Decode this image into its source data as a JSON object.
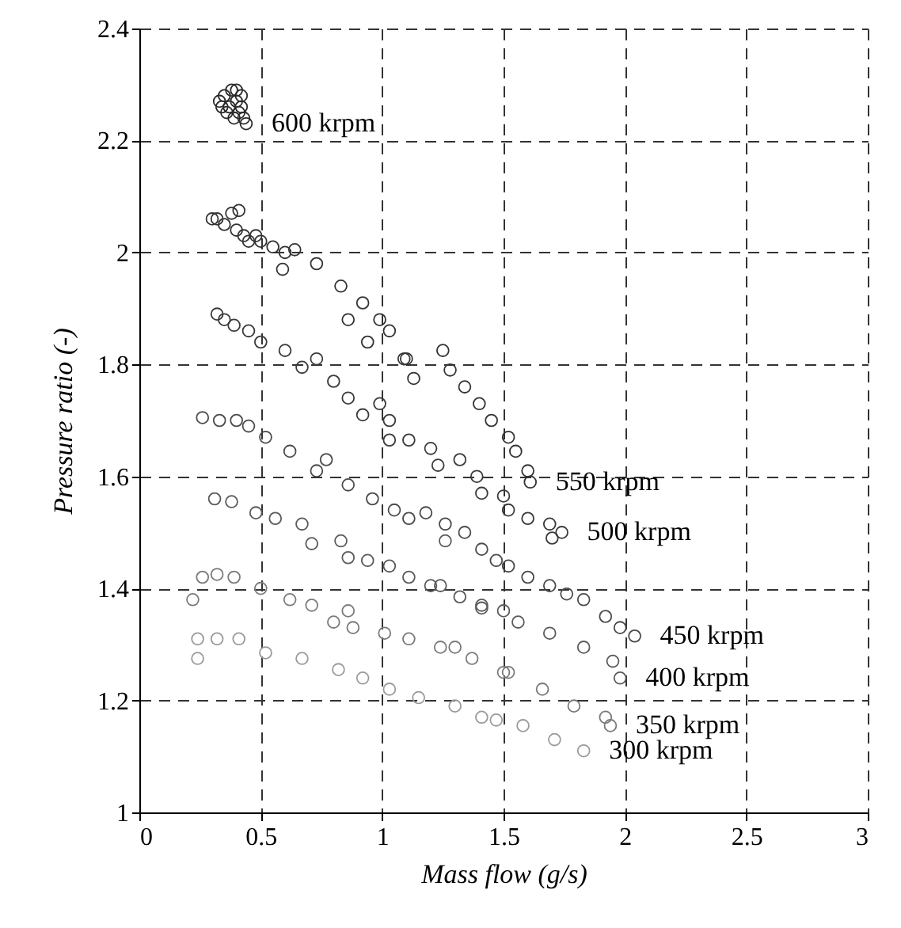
{
  "chart_data": {
    "type": "scatter",
    "xlabel": "Mass flow (g/s)",
    "ylabel": "Pressure ratio (-)",
    "xlim": [
      0,
      3
    ],
    "ylim": [
      1,
      2.4
    ],
    "xticks": [
      0,
      0.5,
      1,
      1.5,
      2,
      2.5,
      3
    ],
    "yticks": [
      1,
      1.2,
      1.4,
      1.6,
      1.8,
      2,
      2.2,
      2.4
    ],
    "grid": true,
    "marker": "circle",
    "series": [
      {
        "name": "600 krpm",
        "color": "#2a2a2a",
        "x": [
          0.33,
          0.35,
          0.37,
          0.38,
          0.36,
          0.4,
          0.41,
          0.39,
          0.42,
          0.43,
          0.44,
          0.34,
          0.4,
          0.42
        ],
        "values": [
          2.27,
          2.28,
          2.26,
          2.29,
          2.25,
          2.27,
          2.25,
          2.24,
          2.26,
          2.24,
          2.23,
          2.26,
          2.29,
          2.28
        ]
      },
      {
        "name": "550 krpm",
        "color": "#333333",
        "x": [
          0.3,
          0.32,
          0.35,
          0.38,
          0.41,
          0.4,
          0.43,
          0.45,
          0.48,
          0.5,
          0.55,
          0.59,
          0.6,
          0.64,
          0.73,
          0.83,
          0.86,
          0.92,
          0.94,
          0.99,
          1.03,
          1.09,
          1.1,
          1.13,
          1.25,
          1.28,
          1.34,
          1.4,
          1.45,
          1.52,
          1.55,
          1.6,
          1.61
        ],
        "values": [
          2.06,
          2.06,
          2.05,
          2.07,
          2.075,
          2.04,
          2.03,
          2.02,
          2.03,
          2.02,
          2.01,
          1.97,
          2.0,
          2.005,
          1.98,
          1.94,
          1.88,
          1.91,
          1.84,
          1.88,
          1.86,
          1.81,
          1.81,
          1.775,
          1.825,
          1.79,
          1.76,
          1.73,
          1.7,
          1.67,
          1.645,
          1.61,
          1.59
        ]
      },
      {
        "name": "500 krpm",
        "color": "#3a3a3a",
        "x": [
          0.32,
          0.35,
          0.39,
          0.45,
          0.5,
          0.6,
          0.67,
          0.73,
          0.8,
          0.86,
          0.92,
          0.99,
          1.03,
          1.03,
          1.11,
          1.2,
          1.23,
          1.32,
          1.39,
          1.41,
          1.5,
          1.52,
          1.6,
          1.69,
          1.7,
          1.74
        ],
        "values": [
          1.89,
          1.88,
          1.87,
          1.86,
          1.84,
          1.825,
          1.795,
          1.81,
          1.77,
          1.74,
          1.71,
          1.73,
          1.7,
          1.665,
          1.665,
          1.65,
          1.62,
          1.63,
          1.6,
          1.57,
          1.565,
          1.54,
          1.525,
          1.515,
          1.49,
          1.5
        ]
      },
      {
        "name": "450 krpm",
        "color": "#4a4a4a",
        "x": [
          0.26,
          0.33,
          0.4,
          0.45,
          0.52,
          0.62,
          0.73,
          0.77,
          0.86,
          0.96,
          1.05,
          1.11,
          1.18,
          1.26,
          1.34,
          1.41,
          1.47,
          1.52,
          1.6,
          1.69,
          1.76,
          1.83,
          1.92,
          1.98,
          2.04
        ],
        "values": [
          1.705,
          1.7,
          1.7,
          1.69,
          1.67,
          1.645,
          1.61,
          1.63,
          1.585,
          1.56,
          1.54,
          1.525,
          1.535,
          1.515,
          1.5,
          1.47,
          1.45,
          1.44,
          1.42,
          1.405,
          1.39,
          1.38,
          1.35,
          1.33,
          1.315
        ]
      },
      {
        "name": "400 krpm",
        "color": "#5a5a5a",
        "x": [
          0.31,
          0.38,
          0.48,
          0.56,
          0.67,
          0.71,
          0.83,
          0.86,
          0.94,
          1.03,
          1.11,
          1.2,
          1.24,
          1.26,
          1.32,
          1.41,
          1.41,
          1.5,
          1.56,
          1.69,
          1.83,
          1.95,
          1.98
        ],
        "values": [
          1.56,
          1.555,
          1.535,
          1.525,
          1.515,
          1.48,
          1.485,
          1.455,
          1.45,
          1.44,
          1.42,
          1.405,
          1.405,
          1.485,
          1.385,
          1.365,
          1.37,
          1.36,
          1.34,
          1.32,
          1.295,
          1.27,
          1.24
        ]
      },
      {
        "name": "350 krpm",
        "color": "#7a7a7a",
        "x": [
          0.22,
          0.26,
          0.32,
          0.39,
          0.5,
          0.62,
          0.71,
          0.8,
          0.86,
          0.88,
          1.01,
          1.11,
          1.24,
          1.3,
          1.37,
          1.5,
          1.52,
          1.66,
          1.79,
          1.92,
          1.94
        ],
        "values": [
          1.38,
          1.42,
          1.425,
          1.42,
          1.4,
          1.38,
          1.37,
          1.34,
          1.36,
          1.33,
          1.32,
          1.31,
          1.295,
          1.295,
          1.275,
          1.25,
          1.25,
          1.22,
          1.19,
          1.17,
          1.155
        ]
      },
      {
        "name": "300 krpm",
        "color": "#9a9a9a",
        "x": [
          0.24,
          0.24,
          0.32,
          0.41,
          0.52,
          0.67,
          0.82,
          0.92,
          1.03,
          1.15,
          1.3,
          1.41,
          1.47,
          1.58,
          1.71,
          1.83
        ],
        "values": [
          1.31,
          1.275,
          1.31,
          1.31,
          1.285,
          1.275,
          1.255,
          1.24,
          1.22,
          1.205,
          1.19,
          1.17,
          1.165,
          1.155,
          1.13,
          1.11
        ]
      }
    ]
  }
}
